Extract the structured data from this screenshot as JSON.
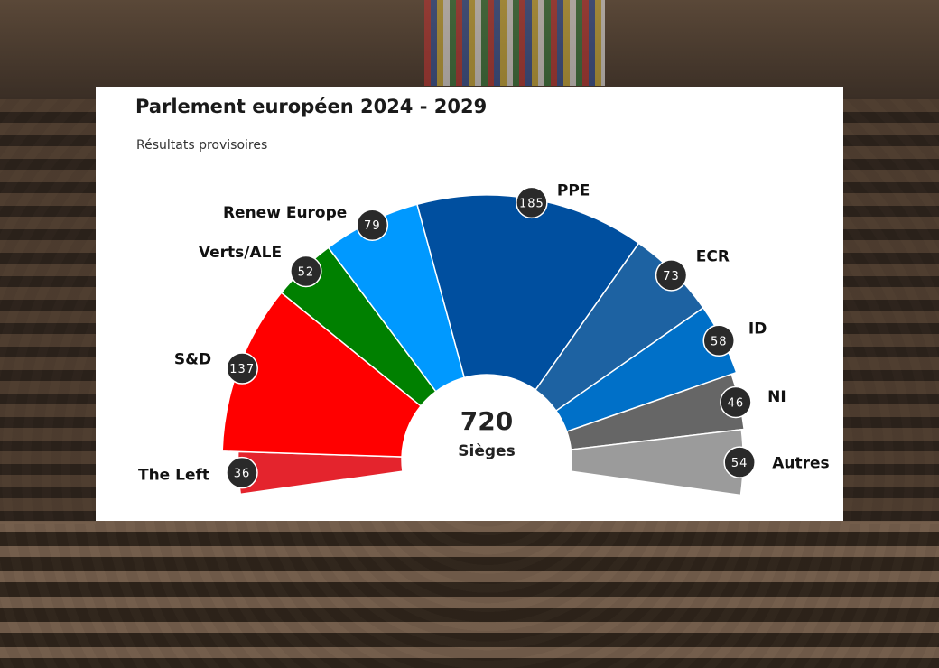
{
  "chart_data": {
    "type": "parliament-hemicycle",
    "title": "Parlement européen 2024 - 2029",
    "subtitle": "Résultats provisoires",
    "total": {
      "value": "720",
      "label": "Sièges"
    },
    "series": [
      {
        "name": "The Left",
        "value": 36,
        "color": "#e4242d"
      },
      {
        "name": "S&D",
        "value": 137,
        "color": "#ff0000"
      },
      {
        "name": "Verts/ALE",
        "value": 52,
        "color": "#008000"
      },
      {
        "name": "Renew Europe",
        "value": 79,
        "color": "#0099ff"
      },
      {
        "name": "PPE",
        "value": 185,
        "color": "#004f9f"
      },
      {
        "name": "ECR",
        "value": 73,
        "color": "#1d62a2"
      },
      {
        "name": "ID",
        "value": 58,
        "color": "#0070c8"
      },
      {
        "name": "NI",
        "value": 46,
        "color": "#666666"
      },
      {
        "name": "Autres",
        "value": 54,
        "color": "#9b9b9b"
      }
    ]
  }
}
